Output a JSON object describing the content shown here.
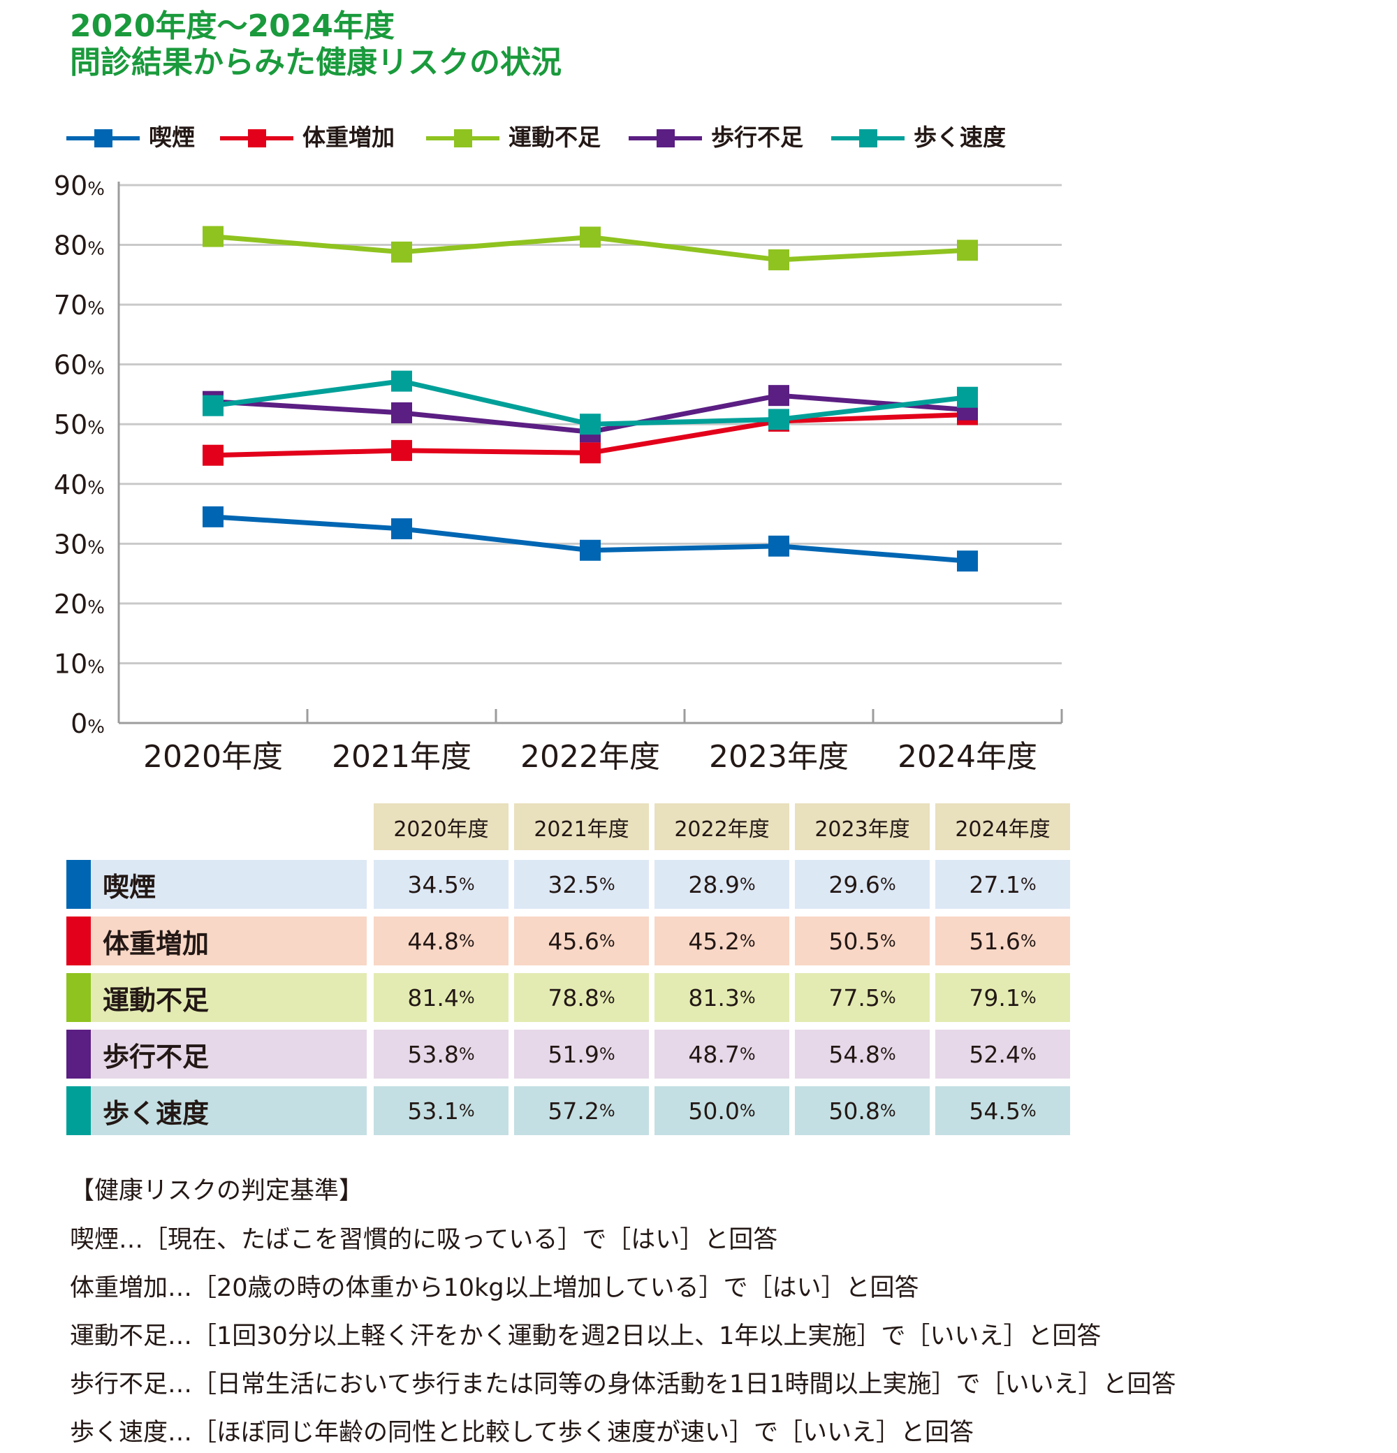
{
  "title": {
    "line1": "2020年度〜2024年度",
    "line2": "問診結果からみた健康リスクの状況"
  },
  "colors": {
    "title": "#1a9a3c",
    "grid": "#c9c9c9",
    "axis": "#9c9c9c",
    "header_bg": "#e9e0bd"
  },
  "chart_data": {
    "type": "line",
    "categories": [
      "2020年度",
      "2021年度",
      "2022年度",
      "2023年度",
      "2024年度"
    ],
    "ylim": [
      0,
      90
    ],
    "yticks": [
      0,
      10,
      20,
      30,
      40,
      50,
      60,
      70,
      80,
      90
    ],
    "ytick_unit": "%",
    "grid": true,
    "legend_position": "top",
    "marker": "square",
    "series": [
      {
        "name": "喫煙",
        "color": "#0066b3",
        "values": [
          34.5,
          32.5,
          28.9,
          29.6,
          27.1
        ]
      },
      {
        "name": "体重増加",
        "color": "#e2001a",
        "values": [
          44.8,
          45.6,
          45.2,
          50.5,
          51.6
        ]
      },
      {
        "name": "運動不足",
        "color": "#8fc31f",
        "values": [
          81.4,
          78.8,
          81.3,
          77.5,
          79.1
        ]
      },
      {
        "name": "歩行不足",
        "color": "#5b1e83",
        "values": [
          53.8,
          51.9,
          48.7,
          54.8,
          52.4
        ]
      },
      {
        "name": "歩く速度",
        "color": "#00a099",
        "values": [
          53.1,
          57.2,
          50.0,
          50.8,
          54.5
        ]
      }
    ]
  },
  "table": {
    "headers": [
      "2020年度",
      "2021年度",
      "2022年度",
      "2023年度",
      "2024年度"
    ],
    "unit": "%",
    "rows": [
      {
        "label": "喫煙",
        "color": "#0066b3",
        "label_bg": "#dde8f5",
        "cell_bg": "#dde8f5",
        "values": [
          "34.5",
          "32.5",
          "28.9",
          "29.6",
          "27.1"
        ]
      },
      {
        "label": "体重増加",
        "color": "#e2001a",
        "label_bg": "#f8d7c6",
        "cell_bg": "#f8d7c6",
        "values": [
          "44.8",
          "45.6",
          "45.2",
          "50.5",
          "51.6"
        ]
      },
      {
        "label": "運動不足",
        "color": "#8fc31f",
        "label_bg": "#e3ebb2",
        "cell_bg": "#e3ebb2",
        "values": [
          "81.4",
          "78.8",
          "81.3",
          "77.5",
          "79.1"
        ]
      },
      {
        "label": "歩行不足",
        "color": "#5b1e83",
        "label_bg": "#e6d8e8",
        "cell_bg": "#e6d8e8",
        "values": [
          "53.8",
          "51.9",
          "48.7",
          "54.8",
          "52.4"
        ]
      },
      {
        "label": "歩く速度",
        "color": "#00a099",
        "label_bg": "#c3dfe3",
        "cell_bg": "#c3dfe3",
        "values": [
          "53.1",
          "57.2",
          "50.0",
          "50.8",
          "54.5"
        ]
      }
    ]
  },
  "criteria": {
    "heading": "【健康リスクの判定基準】",
    "lines": [
      "喫煙…［現在、たばこを習慣的に吸っている］で［はい］と回答",
      "体重増加…［20歳の時の体重から10kg以上増加している］で［はい］と回答",
      "運動不足…［1回30分以上軽く汗をかく運動を週2日以上、1年以上実施］で［いいえ］と回答",
      "歩行不足…［日常生活において歩行または同等の身体活動を1日1時間以上実施］で［いいえ］と回答",
      "歩く速度…［ほぼ同じ年齢の同性と比較して歩く速度が速い］で［いいえ］と回答"
    ]
  }
}
